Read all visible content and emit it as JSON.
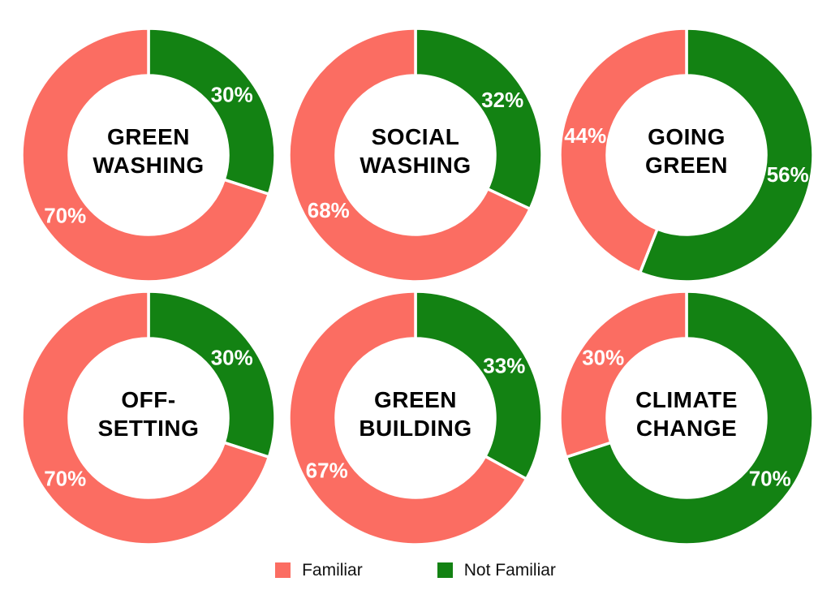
{
  "figure": {
    "background": "#ffffff"
  },
  "colors": {
    "familiar": "#FB6D62",
    "not_familiar": "#138213",
    "slice_separator": "#ffffff",
    "pct_label_text": "#ffffff",
    "title_text": "#000000"
  },
  "legend": {
    "items": [
      {
        "label": "Familiar",
        "color_key": "familiar"
      },
      {
        "label": "Not Familiar",
        "color_key": "not_familiar"
      }
    ]
  },
  "chart_data": {
    "type": "pie",
    "subtype": "donut-small-multiples",
    "grid": "2 rows x 3 columns",
    "legend_position": "bottom",
    "series_labels": [
      "Familiar",
      "Not Familiar"
    ],
    "slice_start": "not-familiar slice starts at 12 o'clock, clockwise",
    "charts": [
      {
        "title_lines": [
          "GREEN",
          "WASHING"
        ],
        "familiar_pct": 70,
        "not_familiar_pct": 30,
        "familiar_label": "70%",
        "not_familiar_label": "30%"
      },
      {
        "title_lines": [
          "SOCIAL",
          "WASHING"
        ],
        "familiar_pct": 68,
        "not_familiar_pct": 32,
        "familiar_label": "68%",
        "not_familiar_label": "32%"
      },
      {
        "title_lines": [
          "GOING",
          "GREEN"
        ],
        "familiar_pct": 44,
        "not_familiar_pct": 56,
        "familiar_label": "44%",
        "not_familiar_label": "56%"
      },
      {
        "title_lines": [
          "OFF-",
          "SETTING"
        ],
        "familiar_pct": 70,
        "not_familiar_pct": 30,
        "familiar_label": "70%",
        "not_familiar_label": "30%"
      },
      {
        "title_lines": [
          "GREEN",
          "BUILDING"
        ],
        "familiar_pct": 67,
        "not_familiar_pct": 33,
        "familiar_label": "67%",
        "not_familiar_label": "33%"
      },
      {
        "title_lines": [
          "CLIMATE",
          "CHANGE"
        ],
        "familiar_pct": 30,
        "not_familiar_pct": 70,
        "familiar_label": "30%",
        "not_familiar_label": "70%"
      }
    ]
  }
}
